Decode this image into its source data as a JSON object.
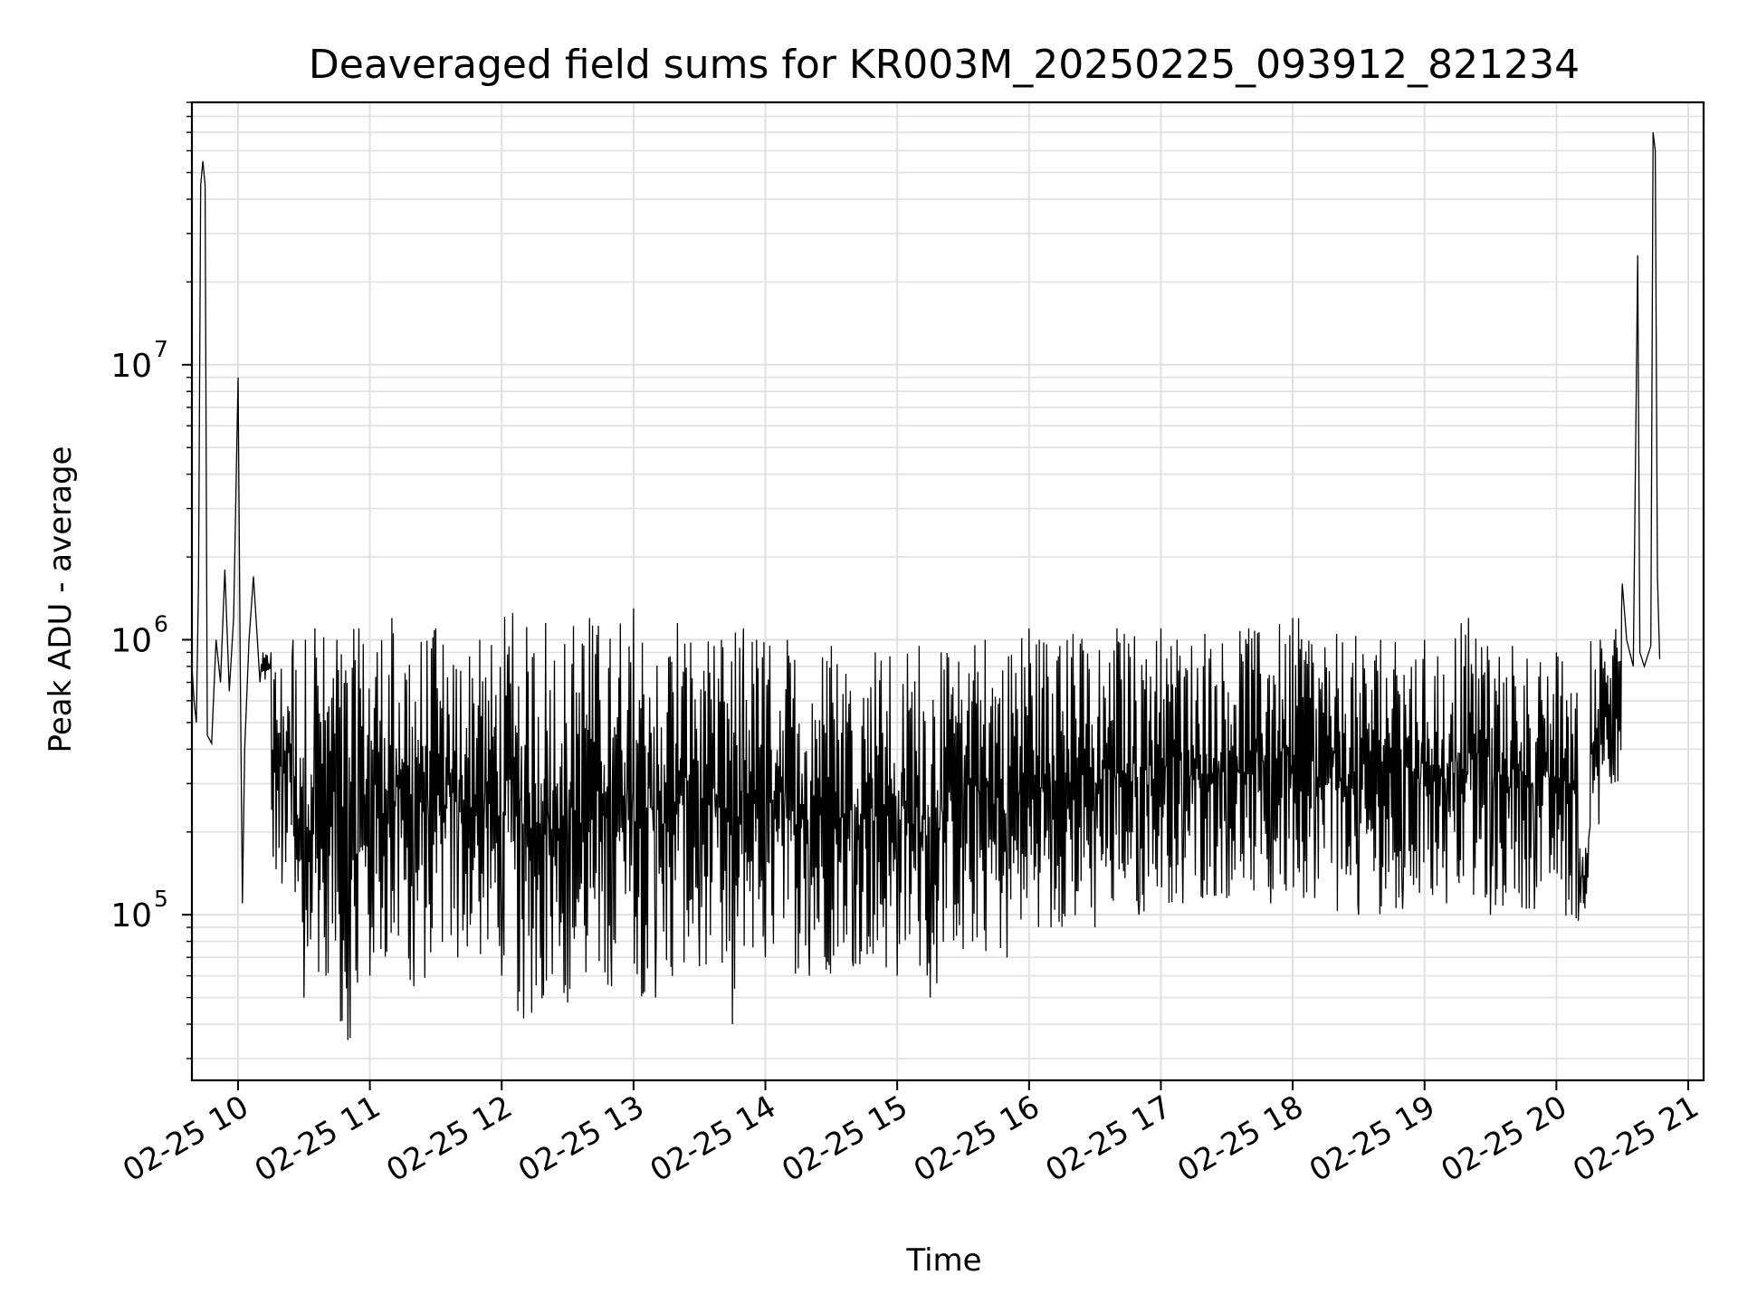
{
  "chart_data": {
    "type": "line",
    "title": "Deaveraged field sums for KR003M_20250225_093912_821234",
    "xlabel": "Time",
    "ylabel": "Peak ADU - average",
    "y_scale": "log",
    "ylim": [
      25000,
      90000000
    ],
    "y_ticks": [
      {
        "base": "10",
        "exp": "5",
        "value": 100000
      },
      {
        "base": "10",
        "exp": "6",
        "value": 1000000
      },
      {
        "base": "10",
        "exp": "7",
        "value": 10000000
      }
    ],
    "xlim": [
      "2025-02-25 09:39",
      "2025-02-25 21:07"
    ],
    "x_ticks": [
      {
        "label": "02-25 10",
        "value": "2025-02-25 10:00"
      },
      {
        "label": "02-25 11",
        "value": "2025-02-25 11:00"
      },
      {
        "label": "02-25 12",
        "value": "2025-02-25 12:00"
      },
      {
        "label": "02-25 13",
        "value": "2025-02-25 13:00"
      },
      {
        "label": "02-25 14",
        "value": "2025-02-25 14:00"
      },
      {
        "label": "02-25 15",
        "value": "2025-02-25 15:00"
      },
      {
        "label": "02-25 16",
        "value": "2025-02-25 16:00"
      },
      {
        "label": "02-25 17",
        "value": "2025-02-25 17:00"
      },
      {
        "label": "02-25 18",
        "value": "2025-02-25 18:00"
      },
      {
        "label": "02-25 19",
        "value": "2025-02-25 19:00"
      },
      {
        "label": "02-25 20",
        "value": "2025-02-25 20:00"
      },
      {
        "label": "02-25 21",
        "value": "2025-02-25 21:00"
      }
    ],
    "grid": true,
    "line_color": "#000000",
    "grid_color": "#e0e0e0",
    "series": [
      {
        "points": [
          [
            "09:39",
            800000
          ],
          [
            "09:40",
            600000
          ],
          [
            "09:41",
            500000
          ],
          [
            "09:42",
            1600000
          ],
          [
            "09:43",
            45000000
          ],
          [
            "09:44",
            55000000
          ],
          [
            "09:45",
            45000000
          ],
          [
            "09:46",
            450000
          ],
          [
            "09:48",
            420000
          ],
          [
            "09:50",
            1000000
          ],
          [
            "09:52",
            700000
          ],
          [
            "09:54",
            1800000
          ],
          [
            "09:56",
            650000
          ],
          [
            "09:58",
            1200000
          ],
          [
            "10:00",
            9000000
          ],
          [
            "10:01",
            800000
          ],
          [
            "10:02",
            110000
          ],
          [
            "10:03",
            400000
          ],
          [
            "10:05",
            1000000
          ],
          [
            "10:07",
            1700000
          ],
          [
            "10:10",
            700000
          ],
          [
            "10:15",
            900000
          ],
          [
            "10:20",
            130000
          ],
          [
            "10:25",
            1000000
          ],
          [
            "10:30",
            50000
          ],
          [
            "10:35",
            1100000
          ],
          [
            "10:40",
            60000
          ],
          [
            "10:45",
            1000000
          ],
          [
            "10:50",
            35000
          ],
          [
            "10:55",
            1100000
          ],
          [
            "11:00",
            60000
          ],
          [
            "11:10",
            1200000
          ],
          [
            "11:20",
            55000
          ],
          [
            "11:30",
            1100000
          ],
          [
            "11:40",
            70000
          ],
          [
            "11:50",
            1000000
          ],
          [
            "12:00",
            60000
          ],
          [
            "12:05",
            1250000
          ],
          [
            "12:10",
            42000
          ],
          [
            "12:20",
            1150000
          ],
          [
            "12:30",
            48000
          ],
          [
            "12:40",
            1200000
          ],
          [
            "12:50",
            55000
          ],
          [
            "13:00",
            1300000
          ],
          [
            "13:10",
            50000
          ],
          [
            "13:20",
            1150000
          ],
          [
            "13:30",
            65000
          ],
          [
            "13:40",
            1000000
          ],
          [
            "13:45",
            40000
          ],
          [
            "13:50",
            1100000
          ],
          [
            "14:00",
            70000
          ],
          [
            "14:10",
            1000000
          ],
          [
            "14:20",
            60000
          ],
          [
            "14:30",
            950000
          ],
          [
            "14:40",
            65000
          ],
          [
            "14:50",
            900000
          ],
          [
            "15:00",
            60000
          ],
          [
            "15:10",
            950000
          ],
          [
            "15:15",
            50000
          ],
          [
            "15:20",
            900000
          ],
          [
            "15:30",
            75000
          ],
          [
            "15:40",
            1000000
          ],
          [
            "15:50",
            70000
          ],
          [
            "16:00",
            1100000
          ],
          [
            "16:10",
            90000
          ],
          [
            "16:20",
            1050000
          ],
          [
            "16:30",
            90000
          ],
          [
            "16:40",
            1100000
          ],
          [
            "16:50",
            100000
          ],
          [
            "17:00",
            1100000
          ],
          [
            "17:10",
            110000
          ],
          [
            "17:20",
            1050000
          ],
          [
            "17:30",
            115000
          ],
          [
            "17:40",
            1100000
          ],
          [
            "17:50",
            110000
          ],
          [
            "18:00",
            1200000
          ],
          [
            "18:10",
            115000
          ],
          [
            "18:20",
            1050000
          ],
          [
            "18:30",
            100000
          ],
          [
            "18:40",
            1000000
          ],
          [
            "18:50",
            105000
          ],
          [
            "19:00",
            1000000
          ],
          [
            "19:10",
            110000
          ],
          [
            "19:20",
            1200000
          ],
          [
            "19:30",
            100000
          ],
          [
            "19:40",
            950000
          ],
          [
            "19:50",
            105000
          ],
          [
            "20:00",
            900000
          ],
          [
            "20:10",
            95000
          ],
          [
            "20:15",
            200000
          ],
          [
            "20:20",
            1000000
          ],
          [
            "20:25",
            300000
          ],
          [
            "20:30",
            1600000
          ],
          [
            "20:32",
            1000000
          ],
          [
            "20:35",
            800000
          ],
          [
            "20:37",
            25000000
          ],
          [
            "20:38",
            900000
          ],
          [
            "20:40",
            800000
          ],
          [
            "20:43",
            950000
          ],
          [
            "20:44",
            70000000
          ],
          [
            "20:45",
            60000000
          ],
          [
            "20:46",
            1700000
          ],
          [
            "20:47",
            850000
          ]
        ]
      }
    ]
  }
}
